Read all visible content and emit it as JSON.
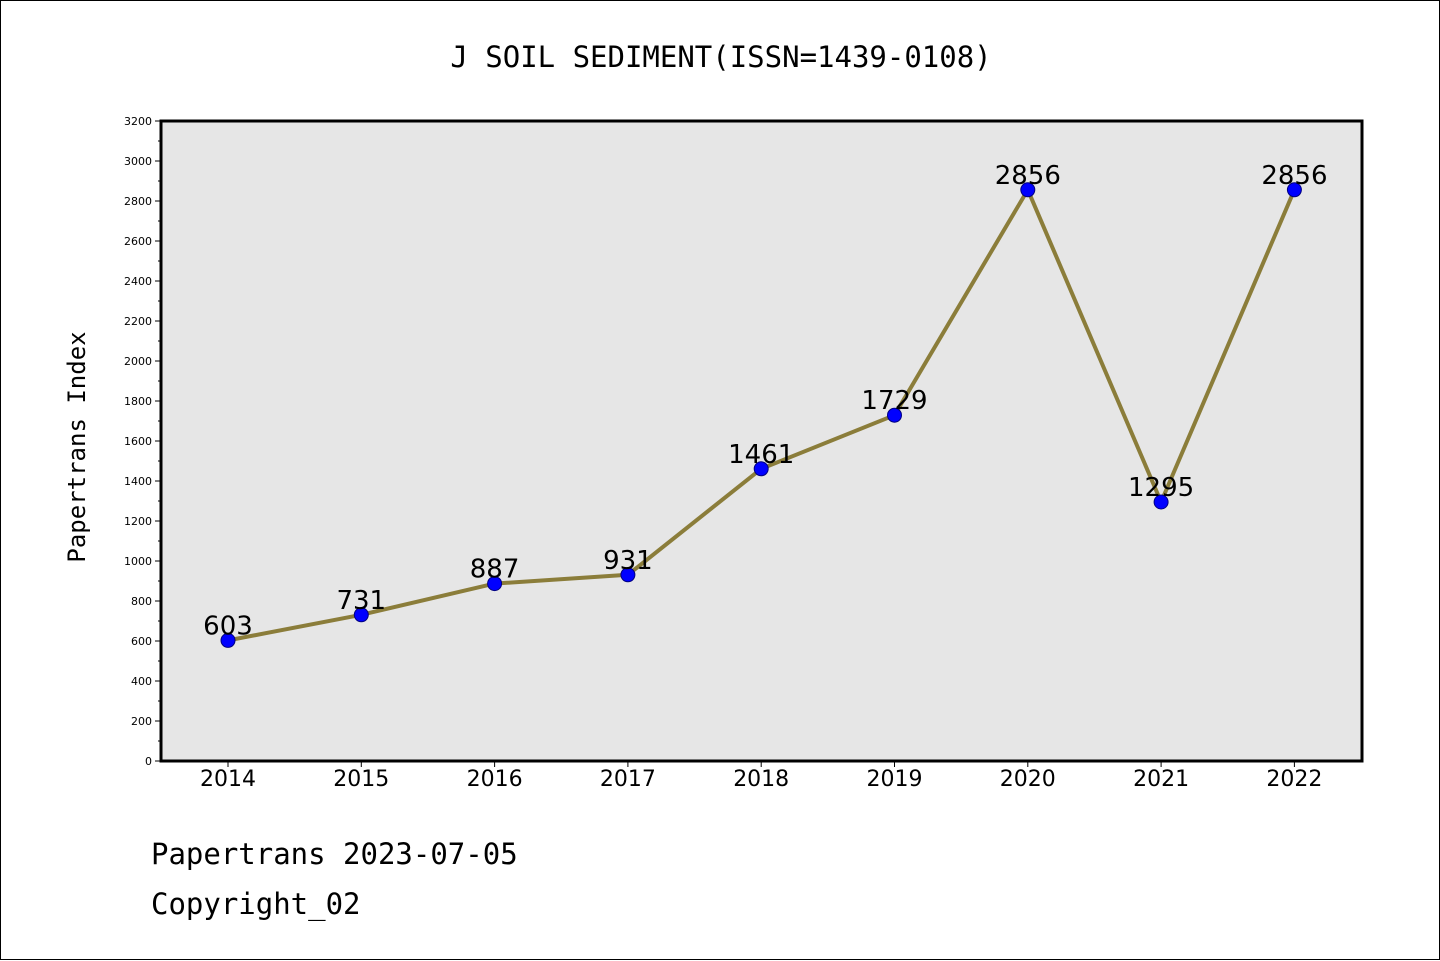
{
  "chart_data": {
    "type": "line",
    "title": "J SOIL SEDIMENT(ISSN=1439-0108)",
    "xlabel": "",
    "ylabel": "Papertrans Index",
    "categories": [
      "2014",
      "2015",
      "2016",
      "2017",
      "2018",
      "2019",
      "2020",
      "2021",
      "2022"
    ],
    "series": [
      {
        "values": [
          603,
          731,
          887,
          931,
          1461,
          1729,
          2856,
          1295,
          2856
        ]
      }
    ],
    "data_labels": [
      "603",
      "731",
      "887",
      "931",
      "1461",
      "1729",
      "2856",
      "1295",
      "2856"
    ],
    "ylim": [
      0,
      3200
    ],
    "yticks": [
      0,
      200,
      400,
      600,
      800,
      1000,
      1200,
      1400,
      1600,
      1800,
      2000,
      2200,
      2400,
      2600,
      2800,
      3000,
      3200
    ],
    "grid": false,
    "legend": "none",
    "colors": {
      "line": "#8b7d3a",
      "marker_fill": "#0000ff",
      "marker_edge": "#000080",
      "plot_background": "#e6e6e6"
    }
  },
  "footer": {
    "date_line": "Papertrans 2023-07-05",
    "copyright_line": "Copyright_02"
  }
}
